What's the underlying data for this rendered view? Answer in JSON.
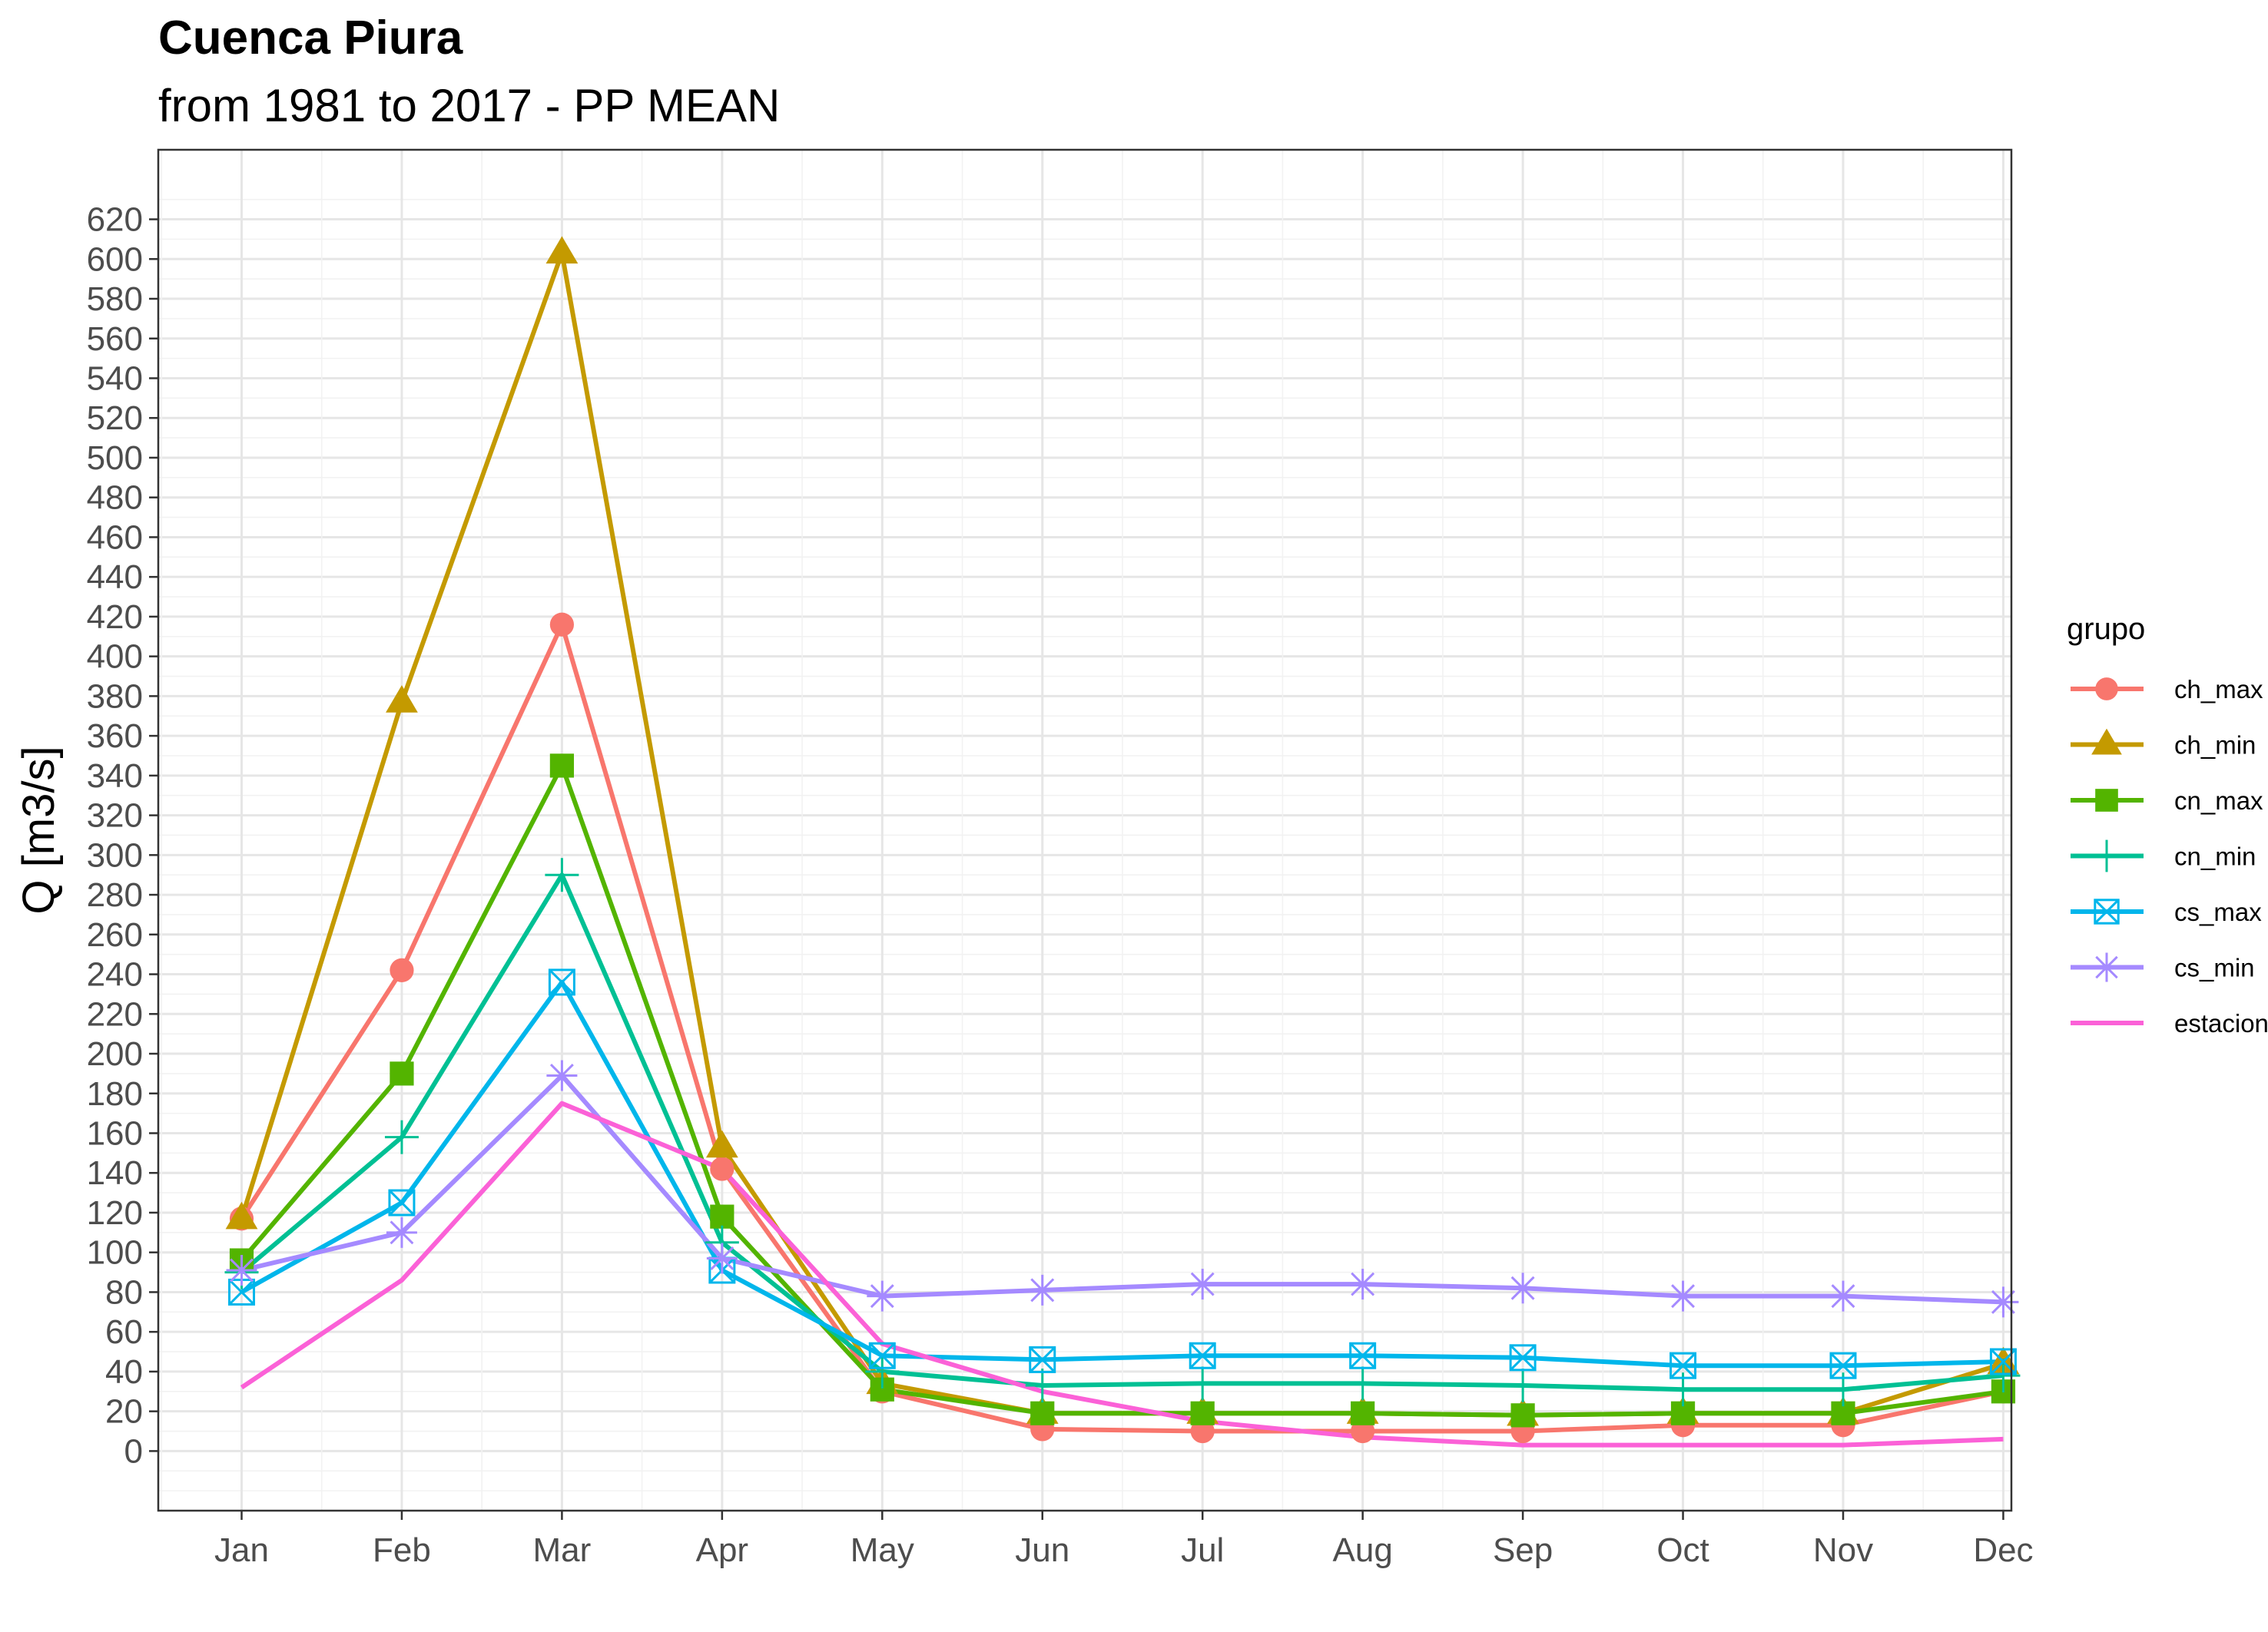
{
  "chart_data": {
    "type": "line",
    "title": "Cuenca Piura",
    "subtitle": "from 1981 to 2017 - PP MEAN",
    "xlabel": "",
    "ylabel": "Q [m3/s]",
    "categories": [
      "Jan",
      "Feb",
      "Mar",
      "Apr",
      "May",
      "Jun",
      "Jul",
      "Aug",
      "Sep",
      "Oct",
      "Nov",
      "Dec"
    ],
    "ylim": [
      -30,
      655
    ],
    "yticks": [
      0,
      20,
      40,
      60,
      80,
      100,
      120,
      140,
      160,
      180,
      200,
      220,
      240,
      260,
      280,
      300,
      320,
      340,
      360,
      380,
      400,
      420,
      440,
      460,
      480,
      500,
      520,
      540,
      560,
      580,
      600,
      620
    ],
    "grid": true,
    "legend_title": "grupo",
    "legend_position": "right",
    "series": [
      {
        "name": "ch_max",
        "color": "#F8766D",
        "marker": "circle",
        "values": [
          117,
          242,
          416,
          142,
          30,
          11,
          10,
          10,
          10,
          13,
          13,
          30
        ]
      },
      {
        "name": "ch_min",
        "color": "#C49A00",
        "marker": "triangle",
        "values": [
          117,
          377,
          603,
          153,
          34,
          19,
          19,
          19,
          18,
          19,
          19,
          44
        ]
      },
      {
        "name": "cn_max",
        "color": "#53B400",
        "marker": "square",
        "values": [
          96,
          190,
          345,
          118,
          31,
          19,
          19,
          19,
          18,
          19,
          19,
          30
        ]
      },
      {
        "name": "cn_min",
        "color": "#00C094",
        "marker": "plus",
        "values": [
          90,
          158,
          290,
          105,
          40,
          33,
          34,
          34,
          33,
          31,
          31,
          38
        ]
      },
      {
        "name": "cs_max",
        "color": "#00B6EB",
        "marker": "square-x",
        "values": [
          80,
          125,
          236,
          91,
          48,
          46,
          48,
          48,
          47,
          43,
          43,
          45
        ]
      },
      {
        "name": "cs_min",
        "color": "#A58AFF",
        "marker": "asterisk",
        "values": [
          91,
          110,
          189,
          97,
          78,
          81,
          84,
          84,
          82,
          78,
          78,
          75
        ]
      },
      {
        "name": "estacion",
        "color": "#FB61D7",
        "marker": "none",
        "values": [
          32,
          86,
          175,
          142,
          54,
          30,
          15,
          7,
          3,
          3,
          3,
          6
        ]
      }
    ]
  }
}
